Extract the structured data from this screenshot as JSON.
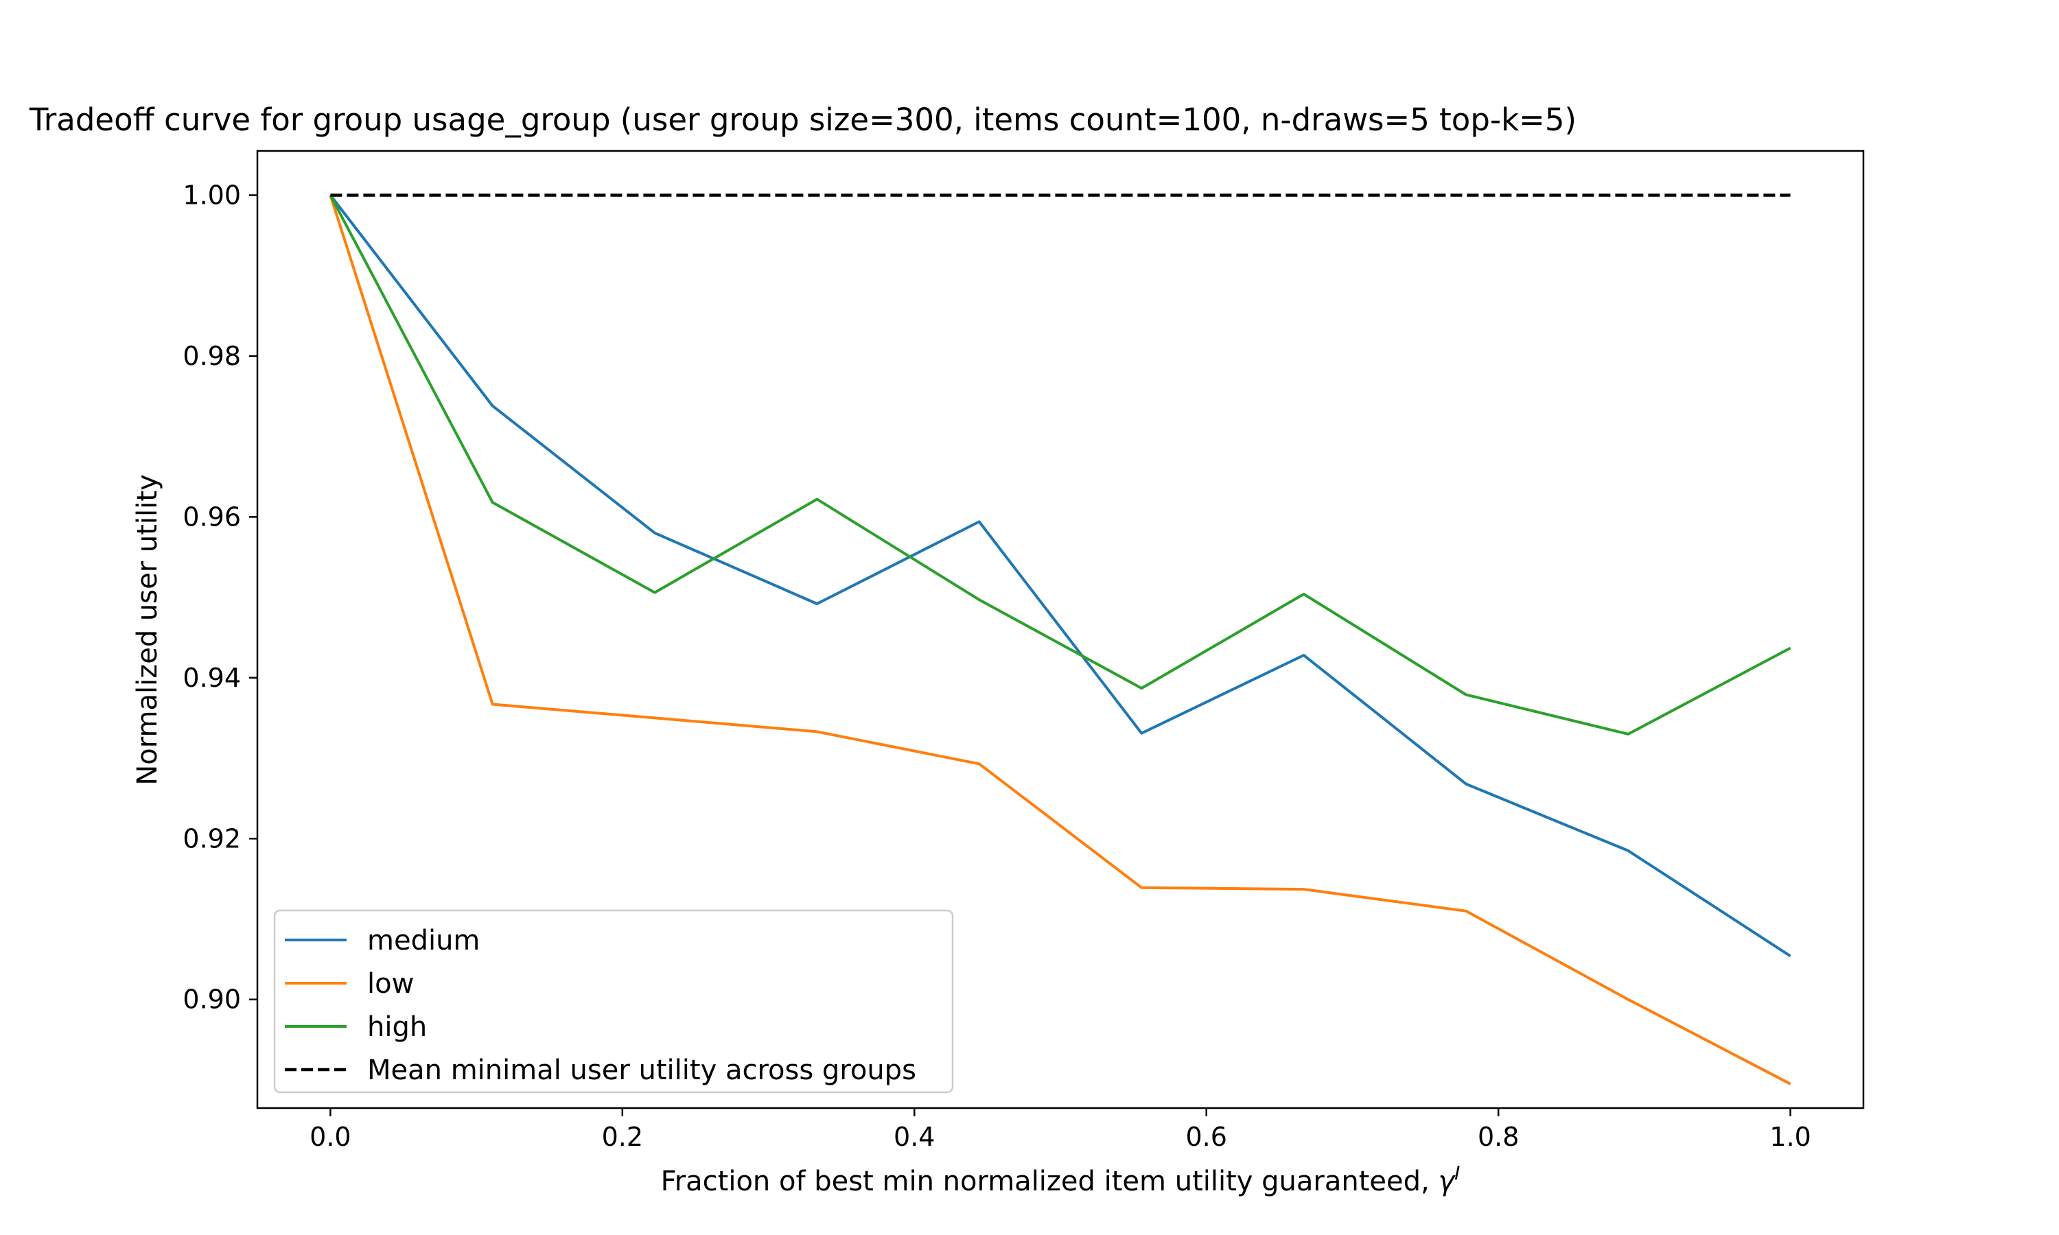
{
  "chart_data": {
    "type": "line",
    "title": "Tradeoff curve for group usage_group (user group size=300, items count=100, n-draws=5 top-k=5)",
    "xlabel_text": "Fraction of best min normalized item utility guaranteed, ",
    "xlabel_symbol": "γ",
    "xlabel_superscript": "I",
    "ylabel": "Normalized user utility",
    "xlim": [
      -0.05,
      1.05
    ],
    "ylim": [
      0.8865,
      1.0055
    ],
    "x_ticks": [
      0.0,
      0.2,
      0.4,
      0.6,
      0.8,
      1.0
    ],
    "x_tick_labels": [
      "0.0",
      "0.2",
      "0.4",
      "0.6",
      "0.8",
      "1.0"
    ],
    "y_ticks": [
      0.9,
      0.92,
      0.94,
      0.96,
      0.98,
      1.0
    ],
    "y_tick_labels": [
      "0.90",
      "0.92",
      "0.94",
      "0.96",
      "0.98",
      "1.00"
    ],
    "grid": false,
    "legend_position": "lower-left",
    "x": [
      0.0,
      0.1111,
      0.2222,
      0.3333,
      0.4444,
      0.5556,
      0.6667,
      0.7778,
      0.8889,
      1.0
    ],
    "series": [
      {
        "name": "medium",
        "color": "#1f77b4",
        "dashed": false,
        "values": [
          1.0,
          0.9738,
          0.958,
          0.9492,
          0.9594,
          0.9331,
          0.9428,
          0.9268,
          0.9185,
          0.9054
        ]
      },
      {
        "name": "low",
        "color": "#ff7f0e",
        "dashed": false,
        "values": [
          1.0,
          0.9367,
          0.935,
          0.9333,
          0.9293,
          0.9139,
          0.9137,
          0.911,
          0.9,
          0.8895
        ]
      },
      {
        "name": "high",
        "color": "#2ca02c",
        "dashed": false,
        "values": [
          1.0,
          0.9618,
          0.9506,
          0.9622,
          0.9497,
          0.9387,
          0.9504,
          0.9379,
          0.933,
          0.9437
        ]
      },
      {
        "name": "Mean minimal user utility across groups",
        "color": "#000000",
        "dashed": true,
        "values": [
          1.0,
          1.0,
          1.0,
          1.0,
          1.0,
          1.0,
          1.0,
          1.0,
          1.0,
          1.0
        ]
      }
    ]
  }
}
